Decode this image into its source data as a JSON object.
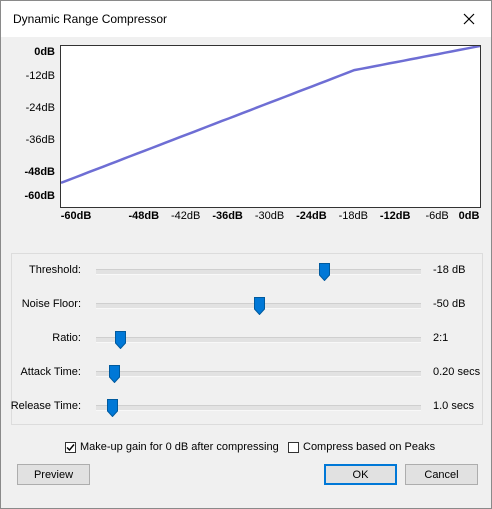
{
  "window": {
    "title": "Dynamic Range Compressor"
  },
  "graph": {
    "y_labels": [
      "0dB",
      "-12dB",
      "-24dB",
      "-36dB",
      "-48dB",
      "-60dB"
    ],
    "x_labels": [
      "-60dB",
      "-48dB",
      "-42dB",
      "-36dB",
      "-30dB",
      "-24dB",
      "-18dB",
      "-12dB",
      "-6dB",
      "0dB"
    ],
    "line_color": "#6e6ed4",
    "curve": {
      "threshold_db": -18,
      "ratio": 2,
      "makeup_gain": true,
      "min_db": -60,
      "max_db": 0
    }
  },
  "sliders": [
    {
      "label": "Threshold:",
      "value": "-18 dB",
      "position": 0.7
    },
    {
      "label": "Noise Floor:",
      "value": "-50 dB",
      "position": 0.5
    },
    {
      "label": "Ratio:",
      "value": "2:1",
      "position": 0.075
    },
    {
      "label": "Attack Time:",
      "value": "0.20 secs",
      "position": 0.055
    },
    {
      "label": "Release Time:",
      "value": "1.0 secs",
      "position": 0.048
    }
  ],
  "options": {
    "makeup_gain_label": "Make-up gain for 0 dB after compressing",
    "makeup_gain_checked": true,
    "peaks_label": "Compress based on Peaks",
    "peaks_checked": false
  },
  "buttons": {
    "preview": "Preview",
    "ok": "OK",
    "cancel": "Cancel"
  },
  "colors": {
    "accent": "#0078d7"
  }
}
